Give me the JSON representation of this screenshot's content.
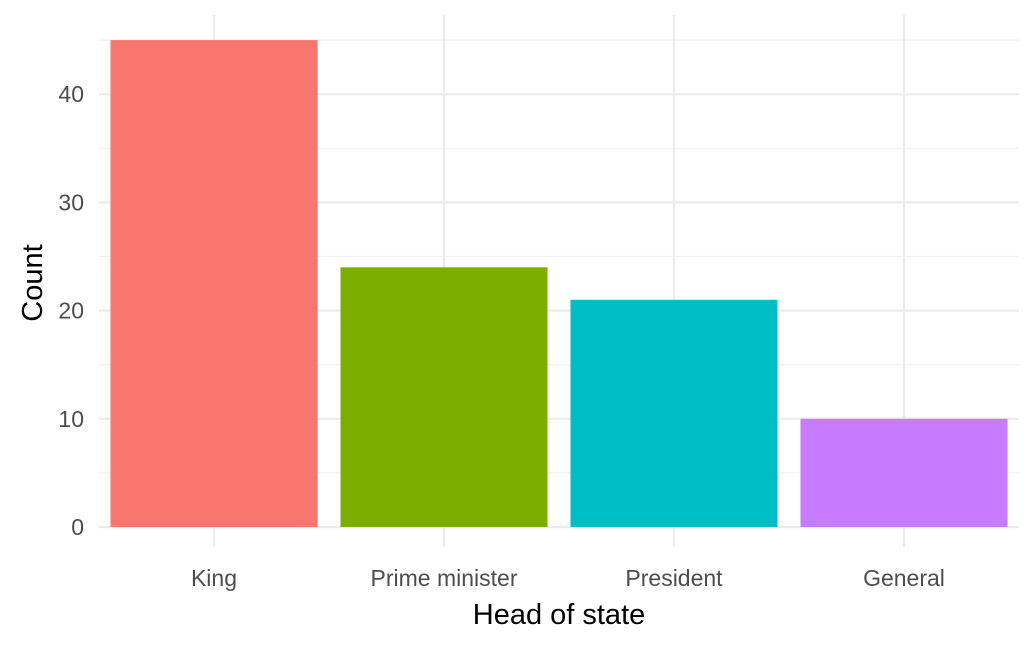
{
  "chart_data": {
    "type": "bar",
    "title": "",
    "xlabel": "Head of state",
    "ylabel": "Count",
    "categories": [
      "King",
      "Prime minister",
      "President",
      "General"
    ],
    "values": [
      45,
      24,
      21,
      10
    ],
    "colors": [
      "#F8766D",
      "#7CAE00",
      "#00BFC4",
      "#C77CFF"
    ],
    "ylim": [
      0,
      45
    ],
    "yticks": [
      0,
      10,
      20,
      30,
      40
    ],
    "ytick_labels": [
      "0",
      "10",
      "20",
      "30",
      "40"
    ],
    "grid": true,
    "legend": "none",
    "theme": "minimal"
  }
}
